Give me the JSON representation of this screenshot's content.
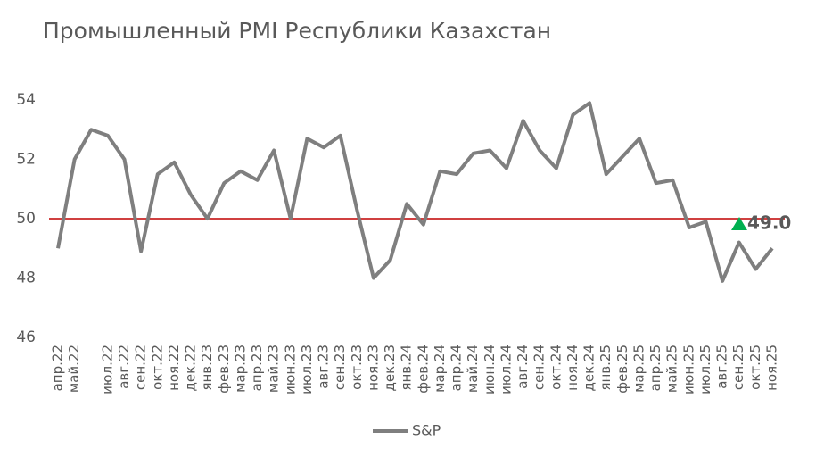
{
  "chart_data": {
    "type": "line",
    "title": "Промышленный PMI Республики Казахстан",
    "categories": [
      "апр.22",
      "май.22",
      null,
      "июл.22",
      "авг.22",
      "сен.22",
      "окт.22",
      "ноя.22",
      "дек.22",
      "янв.23",
      "фев.23",
      "мар.23",
      "апр.23",
      "май.23",
      "июн.23",
      "июл.23",
      "авг.23",
      "сен.23",
      "окт.23",
      "ноя.23",
      "дек.23",
      "янв.24",
      "фев.24",
      "мар.24",
      "апр.24",
      "май.24",
      "июн.24",
      "июл.24",
      "авг.24",
      "сен.24",
      "окт.24",
      "ноя.24",
      "дек.24",
      "янв.25",
      "фев.25",
      "мар.25",
      "апр.25",
      "май.25",
      "июн.25",
      "июл.25",
      "авг.25",
      "сен.25",
      "окт.25",
      "ноя.25"
    ],
    "series": [
      {
        "name": "S&P",
        "color": "#7f7f7f",
        "values": [
          49,
          52,
          53,
          52.8,
          52,
          48.9,
          51.5,
          51.9,
          50.8,
          50,
          51.2,
          51.6,
          51.3,
          52.3,
          50,
          52.7,
          52.4,
          52.8,
          50.3,
          48,
          48.6,
          50.5,
          49.8,
          51.6,
          51.5,
          52.2,
          52.3,
          51.7,
          53.3,
          52.3,
          51.7,
          53.5,
          53.9,
          51.5,
          52.1,
          52.7,
          51.2,
          51.3,
          49.7,
          49.9,
          47.9,
          49.2,
          48.3,
          49.0
        ],
        "value_labels": {
          "43": "49.0"
        }
      }
    ],
    "ylim": [
      46,
      54
    ],
    "yticks": [
      46,
      48,
      50,
      52,
      54
    ],
    "reference_line": {
      "value": 50,
      "color": "#c00000"
    },
    "annotation_marker_color": "#00b050",
    "grid": false,
    "legend": "bottom"
  }
}
